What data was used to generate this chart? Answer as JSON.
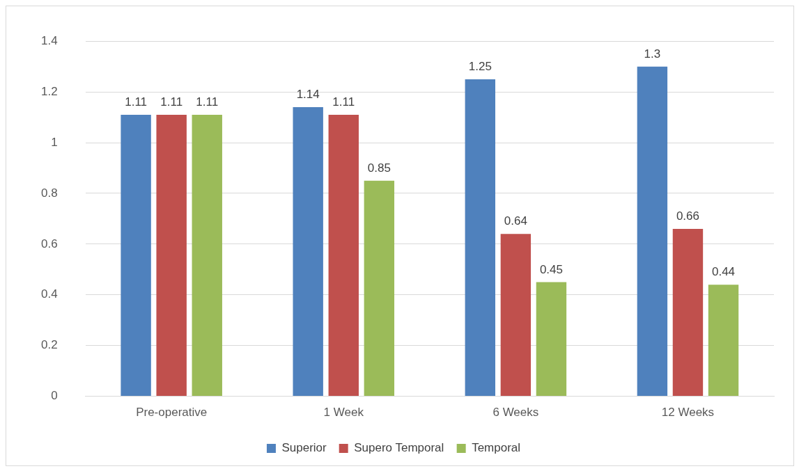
{
  "chart_data": {
    "type": "bar",
    "categories": [
      "Pre-operative",
      "1 Week",
      "6 Weeks",
      "12 Weeks"
    ],
    "series": [
      {
        "name": "Superior",
        "color": "#4f81bd",
        "values": [
          1.11,
          1.14,
          1.25,
          1.3
        ]
      },
      {
        "name": "Supero Temporal",
        "color": "#c0504d",
        "values": [
          1.11,
          1.11,
          0.64,
          0.66
        ]
      },
      {
        "name": "Temporal",
        "color": "#9bbb59",
        "values": [
          1.11,
          0.85,
          0.45,
          0.44
        ]
      }
    ],
    "ylim": [
      0,
      1.4
    ],
    "yticks": [
      0,
      0.2,
      0.4,
      0.6,
      0.8,
      1,
      1.2,
      1.4
    ],
    "grid": "y",
    "legend": "bottom",
    "data_labels": true
  }
}
